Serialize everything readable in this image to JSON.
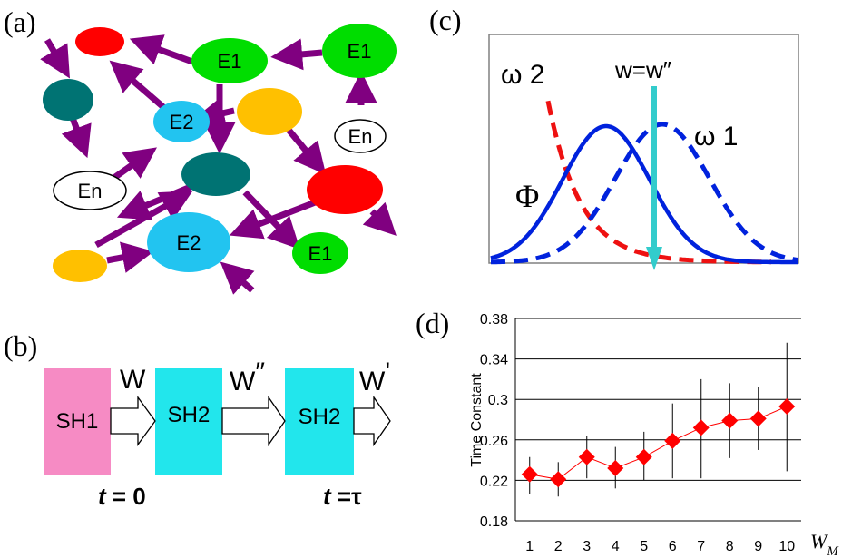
{
  "panels": {
    "a": "(a)",
    "b": "(b)",
    "c": "(c)",
    "d": "(d)"
  },
  "network": {
    "colors": {
      "red": "#ff0000",
      "green": "#00dd00",
      "teal": "#007373",
      "cyan": "#22c4f0",
      "yellow": "#ffc000",
      "white": "#ffffff",
      "arrow": "#800080"
    },
    "nodes": [
      {
        "id": "red1",
        "color": "red",
        "label": ""
      },
      {
        "id": "e1a",
        "color": "green",
        "label": "E1"
      },
      {
        "id": "e1b",
        "color": "green",
        "label": "E1"
      },
      {
        "id": "teal1",
        "color": "teal",
        "label": ""
      },
      {
        "id": "e2a",
        "color": "cyan",
        "label": "E2"
      },
      {
        "id": "yellow1",
        "color": "yellow",
        "label": ""
      },
      {
        "id": "en1",
        "color": "white",
        "label": "En"
      },
      {
        "id": "en2",
        "color": "white",
        "label": "En"
      },
      {
        "id": "teal2",
        "color": "teal",
        "label": ""
      },
      {
        "id": "red2",
        "color": "red",
        "label": ""
      },
      {
        "id": "e2b",
        "color": "cyan",
        "label": "E2"
      },
      {
        "id": "yellow2",
        "color": "yellow",
        "label": ""
      },
      {
        "id": "e1c",
        "color": "green",
        "label": "E1"
      }
    ]
  },
  "sequence": {
    "boxes": [
      {
        "label": "SH1",
        "color": "#f68bc4"
      },
      {
        "label": "SH2",
        "color": "#22e6ec"
      },
      {
        "label": "SH2",
        "color": "#22e6ec"
      }
    ],
    "weights": [
      "W",
      "W",
      "W"
    ],
    "weight_marks": [
      "",
      "″",
      "'"
    ],
    "time_start_var": "t",
    "time_start_value": " = 0",
    "time_end_var": "t",
    "time_end_value": " =τ"
  },
  "distribution": {
    "omega2": "ω 2",
    "omega1": "ω 1",
    "phi": "Φ",
    "condition": "w=w″",
    "colors": {
      "phi": "#0022dd",
      "omega1": "#0022dd",
      "omega2": "#ee1111",
      "marker": "#33cccc"
    }
  },
  "chart_data": {
    "type": "scatter",
    "ylabel": "Time Constant",
    "xlabel": "W_M",
    "x": [
      1,
      2,
      3,
      4,
      5,
      6,
      7,
      8,
      9,
      10
    ],
    "y": [
      0.226,
      0.221,
      0.243,
      0.232,
      0.243,
      0.259,
      0.272,
      0.279,
      0.281,
      0.293
    ],
    "err_low": [
      0.206,
      0.204,
      0.222,
      0.212,
      0.22,
      0.222,
      0.222,
      0.242,
      0.25,
      0.229
    ],
    "err_high": [
      0.243,
      0.238,
      0.264,
      0.253,
      0.268,
      0.296,
      0.32,
      0.316,
      0.312,
      0.356
    ],
    "ylim": [
      0.18,
      0.38
    ],
    "yticks": [
      "0.18",
      "0.22",
      "0.26",
      "0.3",
      "0.34",
      "0.38"
    ],
    "xticks": [
      "1",
      "2",
      "3",
      "4",
      "5",
      "6",
      "7",
      "8",
      "9",
      "10"
    ],
    "grid": true,
    "marker_color": "#ff0000"
  }
}
